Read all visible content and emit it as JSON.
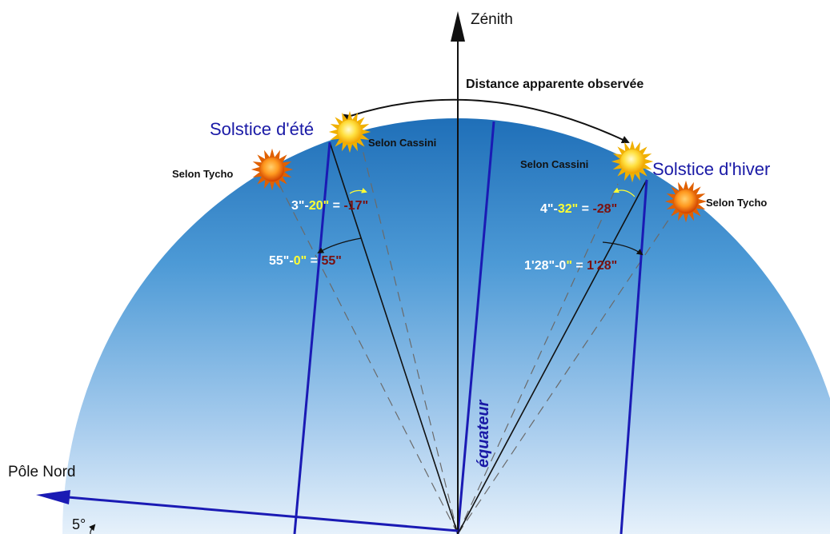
{
  "labels": {
    "zenith": "Zénith",
    "distance": "Distance apparente observée",
    "summer_solstice": "Solstice d'été",
    "winter_solstice": "Solstice d'hiver",
    "cassini_left": "Selon Cassini",
    "cassini_right": "Selon Cassini",
    "tycho_left": "Selon Tycho",
    "tycho_right": "Selon Tycho",
    "equator": "équateur",
    "north_pole": "Pôle Nord",
    "angle_5": "5°"
  },
  "equations": {
    "summer_top": {
      "a": "3\"-",
      "b": "20\"",
      "c": " = ",
      "d": "-17\""
    },
    "summer_bottom": {
      "a": "55\"-",
      "b": "0\"",
      "c": " = ",
      "d": "55\""
    },
    "winter_top": {
      "a": "4\"-",
      "b": "32\"",
      "c": " = ",
      "d": "-28\""
    },
    "winter_bottom": {
      "a": "1'28\"-0",
      "b": "\"",
      "c": " = ",
      "d": "1'28\""
    }
  },
  "colors": {
    "title_blue": "#1a1aa6",
    "line_blue": "#1a1ab4",
    "eq_white": "#ffffff",
    "eq_yellow": "#ffff33",
    "eq_red": "#7a1010"
  },
  "icons": [
    "sun-icon"
  ]
}
